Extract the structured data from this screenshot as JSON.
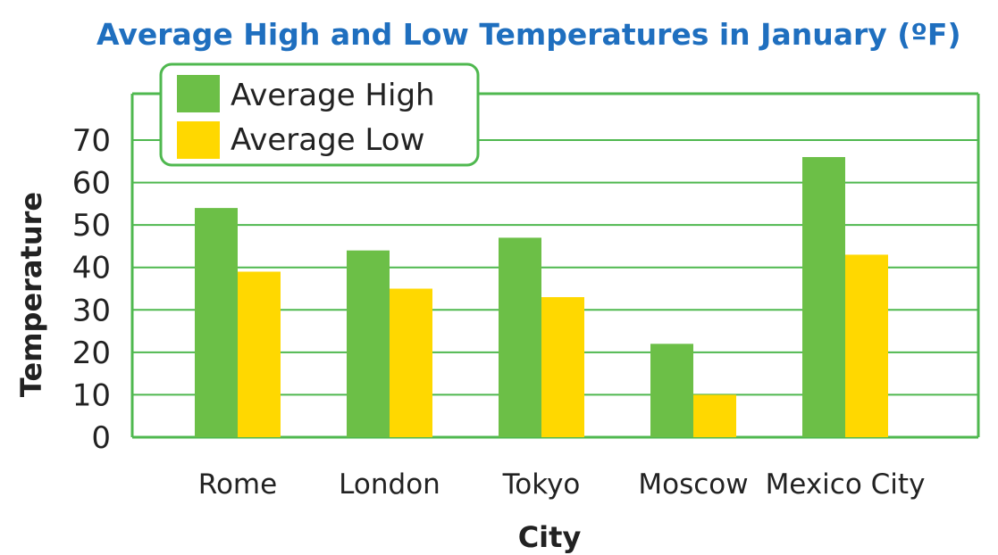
{
  "chart_data": {
    "type": "bar",
    "title": "Average High and Low Temperatures in January (ºF)",
    "xlabel": "City",
    "ylabel": "Temperature",
    "categories": [
      "Rome",
      "London",
      "Tokyo",
      "Moscow",
      "Mexico City"
    ],
    "series": [
      {
        "name": "Average High",
        "values": [
          54,
          44,
          47,
          22,
          66
        ]
      },
      {
        "name": "Average Low",
        "values": [
          39,
          35,
          33,
          10,
          43
        ]
      }
    ],
    "ylim": [
      0,
      70
    ],
    "yticks": [
      0,
      10,
      20,
      30,
      40,
      50,
      60,
      70
    ],
    "grid": true,
    "legend": "top-left",
    "colors": {
      "Average High": "#6cbf47",
      "Average Low": "#ffd800",
      "grid": "#4fb84f",
      "title": "#1f6fbf"
    }
  }
}
